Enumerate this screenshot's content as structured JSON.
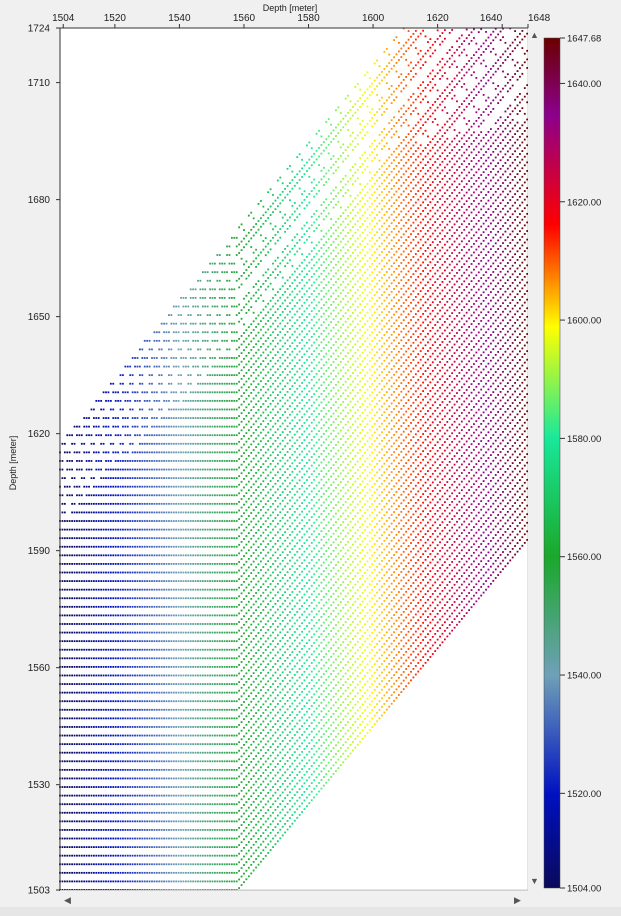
{
  "chart_data": {
    "type": "scatter",
    "xlabel": "Depth [meter]",
    "ylabel": "Depth [meter]",
    "xlim": [
      1503,
      1648
    ],
    "ylim": [
      1503,
      1724
    ],
    "x_ticks": [
      "1504",
      "1520",
      "1540",
      "1560",
      "1580",
      "1600",
      "1620",
      "1640",
      "1648"
    ],
    "y_ticks": [
      "1724",
      "1710",
      "1680",
      "1650",
      "1620",
      "1590",
      "1560",
      "1530",
      "1503"
    ],
    "colorbar": {
      "min": 1504,
      "max": 1647.68,
      "tick_labels": [
        "1647.68",
        "1640.00",
        "1620.00",
        "1600.00",
        "1580.00",
        "1560.00",
        "1540.00",
        "1520.00",
        "1504.00"
      ],
      "colors": [
        "#0a0a5a",
        "#0010c0",
        "#6fa0b8",
        "#1aa82a",
        "#19e89a",
        "#ffff00",
        "#ff0000",
        "#8b008b",
        "#6a0000"
      ]
    },
    "grid": false,
    "legend": "colorbar-right"
  },
  "scrollbars": {
    "left_arrow": "◀",
    "right_arrow": "▶",
    "up_arrow": "▲",
    "down_arrow": "▼"
  }
}
